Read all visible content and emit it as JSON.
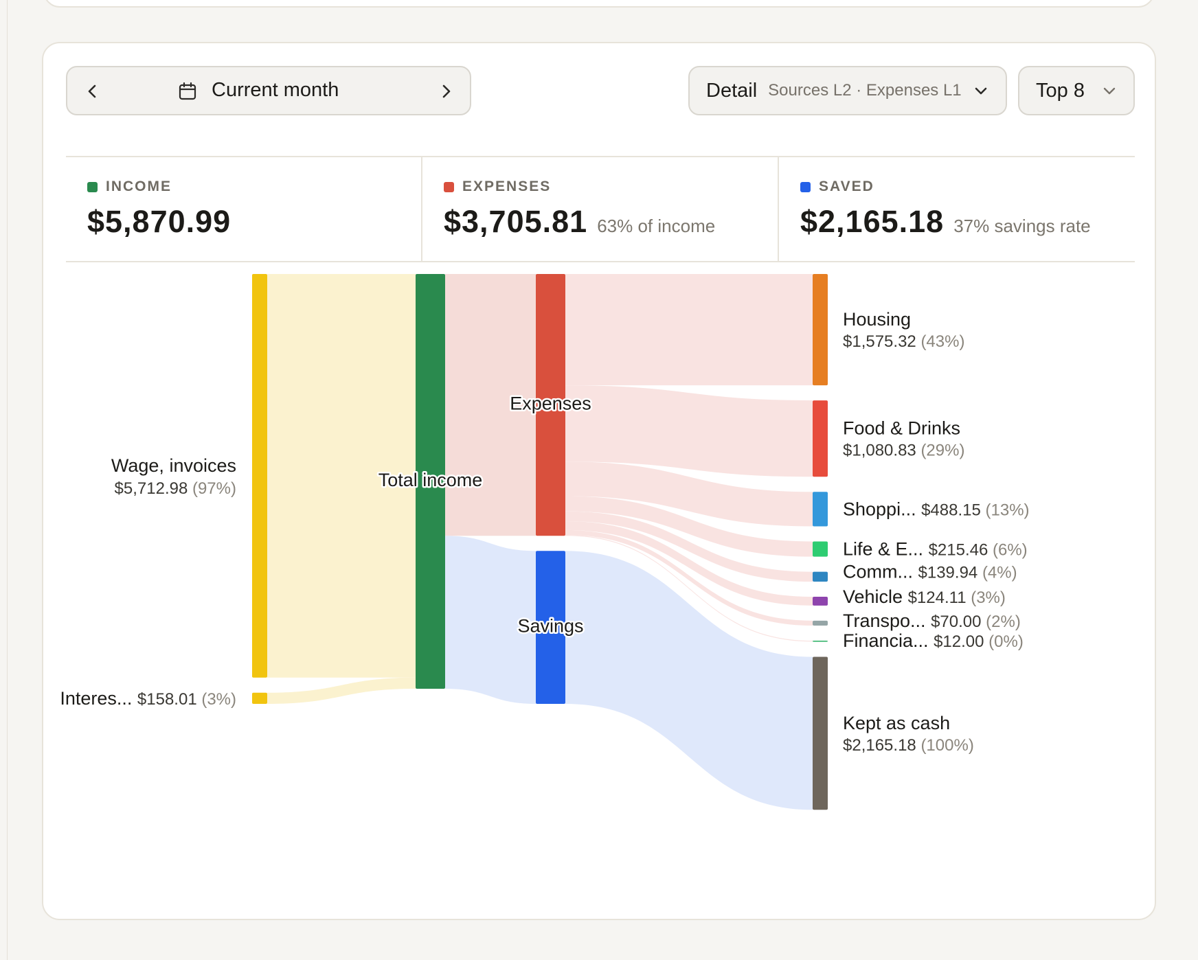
{
  "controls": {
    "period_label": "Current month",
    "detail_label": "Detail",
    "detail_value": "Sources L2 · Expenses L1",
    "top_label": "Top 8"
  },
  "stats": {
    "income": {
      "label": "INCOME",
      "value": "$5,870.99",
      "note": "",
      "color": "#2a8a4e"
    },
    "expenses": {
      "label": "EXPENSES",
      "value": "$3,705.81",
      "note": "63% of income",
      "color": "#d9503d"
    },
    "saved": {
      "label": "SAVED",
      "value": "$2,165.18",
      "note": "37% savings rate",
      "color": "#2461e8"
    }
  },
  "chart_data": {
    "type": "sankey",
    "sources": [
      {
        "name": "Wage, invoices",
        "amount": "$5,712.98",
        "pct": "(97%)",
        "value": 5712.98,
        "color": "#f1c40f"
      },
      {
        "name": "Interes...",
        "amount": "$158.01",
        "pct": "(3%)",
        "value": 158.01,
        "color": "#f1c40f"
      }
    ],
    "middle": [
      {
        "name": "Total income",
        "value": 5870.99,
        "color": "#2a8a4e"
      },
      {
        "name": "Expenses",
        "value": 3705.81,
        "color": "#d9503d"
      },
      {
        "name": "Savings",
        "value": 2165.18,
        "color": "#2461e8"
      }
    ],
    "targets": [
      {
        "name": "Housing",
        "amount": "$1,575.32",
        "pct": "(43%)",
        "value": 1575.32,
        "color": "#e67e22",
        "group": "expenses"
      },
      {
        "name": "Food & Drinks",
        "amount": "$1,080.83",
        "pct": "(29%)",
        "value": 1080.83,
        "color": "#e74c3c",
        "group": "expenses"
      },
      {
        "name": "Shoppi...",
        "amount": "$488.15",
        "pct": "(13%)",
        "value": 488.15,
        "color": "#3498db",
        "group": "expenses"
      },
      {
        "name": "Life & E...",
        "amount": "$215.46",
        "pct": "(6%)",
        "value": 215.46,
        "color": "#2ecc71",
        "group": "expenses"
      },
      {
        "name": "Comm...",
        "amount": "$139.94",
        "pct": "(4%)",
        "value": 139.94,
        "color": "#2e86c1",
        "group": "expenses"
      },
      {
        "name": "Vehicle",
        "amount": "$124.11",
        "pct": "(3%)",
        "value": 124.11,
        "color": "#8e44ad",
        "group": "expenses"
      },
      {
        "name": "Transpo...",
        "amount": "$70.00",
        "pct": "(2%)",
        "value": 70.0,
        "color": "#95a5a6",
        "group": "expenses"
      },
      {
        "name": "Financia...",
        "amount": "$12.00",
        "pct": "(0%)",
        "value": 12.0,
        "color": "#27ae60",
        "group": "expenses"
      },
      {
        "name": "Kept as cash",
        "amount": "$2,165.18",
        "pct": "(100%)",
        "value": 2165.18,
        "color": "#6e665c",
        "group": "savings"
      }
    ],
    "link_colors": {
      "source": "#fbf2cf",
      "expenses": "#f9e3e1",
      "savings": "#dfe8fb",
      "income_to_expenses": "#f5dcd8"
    }
  }
}
